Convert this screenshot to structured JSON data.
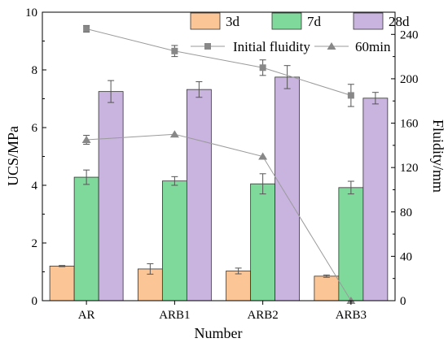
{
  "chart_data": {
    "type": "bar",
    "xlabel": "Number",
    "ylabel": "UCS/MPa",
    "y2label": "Fluidity/mm",
    "categories": [
      "AR",
      "ARB1",
      "ARB2",
      "ARB3"
    ],
    "ylim": [
      0,
      10
    ],
    "yticks": [
      "0",
      "2",
      "4",
      "6",
      "8",
      "10"
    ],
    "y2lim": [
      0,
      260
    ],
    "y2ticks": [
      "0",
      "40",
      "80",
      "120",
      "160",
      "200",
      "240"
    ],
    "grid": false,
    "series": [
      {
        "name": "3d",
        "color": "#fbc596",
        "values": [
          1.2,
          1.1,
          1.03,
          0.85
        ],
        "errors": [
          0.02,
          0.18,
          0.1,
          0.04
        ]
      },
      {
        "name": "7d",
        "color": "#7ed99a",
        "values": [
          4.28,
          4.15,
          4.05,
          3.92
        ],
        "errors": [
          0.25,
          0.15,
          0.35,
          0.22
        ]
      },
      {
        "name": "28d",
        "color": "#c9b3df",
        "values": [
          7.25,
          7.32,
          7.75,
          7.02
        ],
        "errors": [
          0.38,
          0.27,
          0.4,
          0.2
        ]
      }
    ],
    "lines": [
      {
        "name": "Initial fluidity",
        "marker": "square",
        "color": "#888888",
        "values": [
          245,
          225,
          210,
          185
        ],
        "errors": [
          3,
          5,
          7,
          10
        ]
      },
      {
        "name": "60min",
        "marker": "triangle",
        "color": "#888888",
        "values": [
          145,
          150,
          130,
          0
        ],
        "errors": [
          4,
          0,
          0,
          0
        ]
      }
    ]
  }
}
